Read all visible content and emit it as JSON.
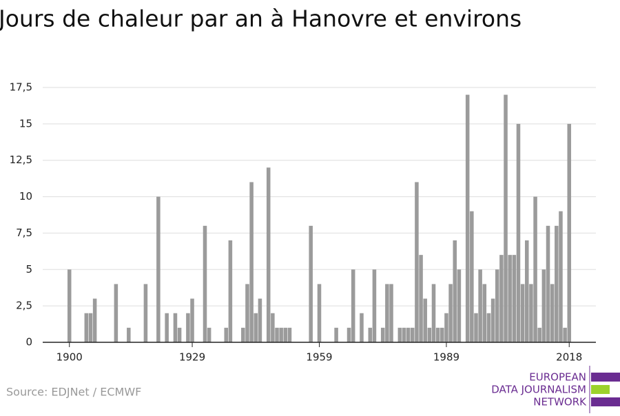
{
  "chart_data": {
    "type": "bar",
    "title": "Jours de chaleur par an à Hanovre et environs",
    "source": "Source: EDJNet / ECMWF",
    "logo": [
      "EUROPEAN",
      "DATA JOURNALISM",
      "NETWORK"
    ],
    "color": "#9b9b9b",
    "x": [
      1900,
      1901,
      1902,
      1903,
      1904,
      1905,
      1906,
      1907,
      1908,
      1909,
      1910,
      1911,
      1912,
      1913,
      1914,
      1915,
      1916,
      1917,
      1918,
      1919,
      1920,
      1921,
      1922,
      1923,
      1924,
      1925,
      1926,
      1927,
      1928,
      1929,
      1930,
      1931,
      1932,
      1933,
      1934,
      1935,
      1936,
      1937,
      1938,
      1939,
      1940,
      1941,
      1942,
      1943,
      1944,
      1945,
      1946,
      1947,
      1948,
      1949,
      1950,
      1951,
      1952,
      1953,
      1954,
      1955,
      1956,
      1957,
      1958,
      1959,
      1960,
      1961,
      1962,
      1963,
      1964,
      1965,
      1966,
      1967,
      1968,
      1969,
      1970,
      1971,
      1972,
      1973,
      1974,
      1975,
      1976,
      1977,
      1978,
      1979,
      1980,
      1981,
      1982,
      1983,
      1984,
      1985,
      1986,
      1987,
      1988,
      1989,
      1990,
      1991,
      1992,
      1993,
      1994,
      1995,
      1996,
      1997,
      1998,
      1999,
      2000,
      2001,
      2002,
      2003,
      2004,
      2005,
      2006,
      2007,
      2008,
      2009,
      2010,
      2011,
      2012,
      2013,
      2014,
      2015,
      2016,
      2017,
      2018
    ],
    "values": [
      5,
      0,
      0,
      0,
      2,
      2,
      3,
      0,
      0,
      0,
      0,
      4,
      0,
      0,
      1,
      0,
      0,
      0,
      4,
      0,
      0,
      10,
      0,
      2,
      0,
      2,
      1,
      0,
      2,
      3,
      0,
      0,
      8,
      1,
      0,
      0,
      0,
      1,
      7,
      0,
      0,
      1,
      4,
      11,
      2,
      3,
      0,
      12,
      2,
      1,
      1,
      1,
      1,
      0,
      0,
      0,
      0,
      8,
      0,
      4,
      0,
      0,
      0,
      1,
      0,
      0,
      1,
      5,
      0,
      2,
      0,
      1,
      5,
      0,
      1,
      4,
      4,
      0,
      1,
      1,
      1,
      1,
      11,
      6,
      3,
      1,
      4,
      1,
      1,
      2,
      4,
      7,
      5,
      0,
      17,
      9,
      2,
      5,
      4,
      2,
      3,
      5,
      6,
      17,
      6,
      6,
      15,
      4,
      7,
      4,
      10,
      1,
      5,
      8,
      4,
      8,
      9,
      1,
      15
    ],
    "xlim": [
      1893.7,
      2024.3
    ],
    "xticks": [
      1900,
      1929,
      1959,
      1989,
      2018
    ],
    "ylim": [
      0,
      17.5
    ],
    "yticks": [
      0,
      {
        "value": 2.5,
        "label": "2,5"
      },
      5,
      {
        "value": 7.5,
        "label": "7,5"
      },
      10,
      {
        "value": 12.5,
        "label": "12,5"
      },
      15,
      {
        "value": 17.5,
        "label": "17,5"
      }
    ],
    "grid": true
  }
}
